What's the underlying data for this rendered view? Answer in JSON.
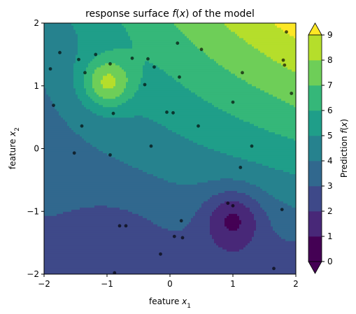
{
  "chart_data": {
    "type": "contour",
    "title": "response surface f(x) of the model",
    "title_math_token": "f(x)",
    "xlabel_text": "feature x",
    "xlabel_sub": "1",
    "ylabel_text": "feature x",
    "ylabel_sub": "2",
    "colorbar_label": "Prediction f(x)",
    "xlim": [
      -2,
      2
    ],
    "ylim": [
      -2,
      2
    ],
    "xticks": [
      -2,
      -1,
      0,
      1,
      2
    ],
    "yticks": [
      -2,
      -1,
      0,
      1,
      2
    ],
    "levels": [
      0,
      1,
      2,
      3,
      4,
      5,
      6,
      7,
      8,
      9
    ],
    "colorbar_extend": "both",
    "colormap": "viridis",
    "colors": [
      "#440154",
      "#482878",
      "#3e4989",
      "#31688e",
      "#26828e",
      "#1f9e89",
      "#35b779",
      "#6ece58",
      "#b5de2b",
      "#fde725"
    ],
    "surface_features": [
      {
        "kind": "peak",
        "x": -1.0,
        "y": 1.05,
        "value": 8.4
      },
      {
        "kind": "trough",
        "x": 1.0,
        "y": -1.1,
        "value": 0.6
      }
    ],
    "points": [
      [
        -1.75,
        1.53
      ],
      [
        -1.9,
        1.27
      ],
      [
        -1.45,
        1.42
      ],
      [
        -1.35,
        1.21
      ],
      [
        -1.18,
        1.5
      ],
      [
        -0.95,
        1.35
      ],
      [
        -0.6,
        1.44
      ],
      [
        -0.35,
        1.43
      ],
      [
        -0.25,
        1.3
      ],
      [
        0.12,
        1.68
      ],
      [
        0.5,
        1.58
      ],
      [
        0.15,
        1.14
      ],
      [
        -0.4,
        1.02
      ],
      [
        1.15,
        1.21
      ],
      [
        1.8,
        1.41
      ],
      [
        1.82,
        1.33
      ],
      [
        1.85,
        1.86
      ],
      [
        1.93,
        0.88
      ],
      [
        -1.85,
        0.69
      ],
      [
        -0.9,
        0.56
      ],
      [
        -0.05,
        0.58
      ],
      [
        0.05,
        0.57
      ],
      [
        1.0,
        0.74
      ],
      [
        0.45,
        0.36
      ],
      [
        -1.4,
        0.36
      ],
      [
        -1.52,
        -0.07
      ],
      [
        -0.95,
        -0.1
      ],
      [
        -0.3,
        0.04
      ],
      [
        1.3,
        0.04
      ],
      [
        1.12,
        -0.3
      ],
      [
        0.92,
        -0.87
      ],
      [
        1.0,
        -0.91
      ],
      [
        1.78,
        -0.97
      ],
      [
        -0.8,
        -1.23
      ],
      [
        -0.7,
        -1.23
      ],
      [
        0.18,
        -1.15
      ],
      [
        0.2,
        -1.42
      ],
      [
        0.07,
        -1.4
      ],
      [
        -0.15,
        -1.68
      ],
      [
        -0.88,
        -1.98
      ],
      [
        1.65,
        -1.91
      ]
    ]
  }
}
